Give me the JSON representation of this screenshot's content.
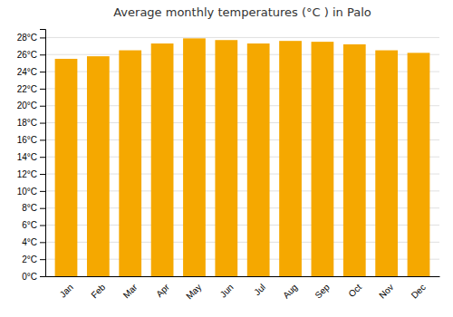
{
  "chart_data": {
    "type": "bar",
    "title": "Average monthly temperatures (°C ) in Palo",
    "categories": [
      "Jan",
      "Feb",
      "Mar",
      "Apr",
      "May",
      "Jun",
      "Jul",
      "Aug",
      "Sep",
      "Oct",
      "Nov",
      "Dec"
    ],
    "values": [
      25.5,
      25.8,
      26.5,
      27.3,
      27.9,
      27.7,
      27.3,
      27.6,
      27.5,
      27.2,
      26.5,
      26.2
    ],
    "color": "#F5A800",
    "ylim": [
      0,
      29
    ],
    "yticks": [
      {
        "value": 0,
        "label": "0°C"
      },
      {
        "value": 2,
        "label": "2°C"
      },
      {
        "value": 4,
        "label": "4°C"
      },
      {
        "value": 6,
        "label": "6°C"
      },
      {
        "value": 8,
        "label": "8°C"
      },
      {
        "value": 10,
        "label": "10°C"
      },
      {
        "value": 12,
        "label": "12°C"
      },
      {
        "value": 14,
        "label": "14°C"
      },
      {
        "value": 16,
        "label": "16°C"
      },
      {
        "value": 18,
        "label": "18°C"
      },
      {
        "value": 20,
        "label": "20°C"
      },
      {
        "value": 22,
        "label": "22°C"
      },
      {
        "value": 24,
        "label": "24°C"
      },
      {
        "value": 26,
        "label": "26°C"
      },
      {
        "value": 28,
        "label": "28°C"
      }
    ],
    "grid": true
  }
}
